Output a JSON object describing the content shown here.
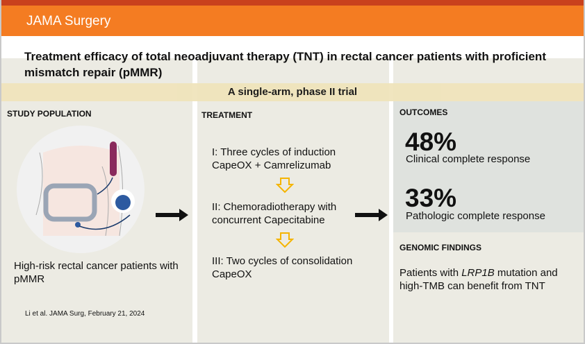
{
  "brand": "JAMA Surgery",
  "title": "Treatment efficacy of total neoadjuvant therapy (TNT) in rectal cancer patients with proficient mismatch repair (pMMR)",
  "design": "A single-arm, phase II trial",
  "population": {
    "heading": "STUDY POPULATION",
    "text": "High-risk rectal cancer patients with pMMR",
    "citation": "Li et al. JAMA Surg, February 21, 2024"
  },
  "treatment": {
    "heading": "TREATMENT",
    "steps": [
      "I: Three cycles of induction CapeOX + Camrelizumab",
      "II: Chemoradiotherapy with concurrent Capecitabine",
      "III: Two cycles of consolidation CapeOX"
    ]
  },
  "outcomes": {
    "heading": "OUTCOMES",
    "items": [
      {
        "value": "48%",
        "label": "Clinical complete response"
      },
      {
        "value": "33%",
        "label": "Pathologic complete response"
      }
    ]
  },
  "genomic": {
    "heading": "GENOMIC FINDINGS",
    "pre": "Patients with ",
    "gene": "LRP1B",
    "post": " mutation and high-TMB can benefit from TNT"
  },
  "colors": {
    "orange": "#f47c22",
    "band": "#f0e4bc",
    "panel": "#ecebe3",
    "outcomes": "#dfe2de"
  }
}
